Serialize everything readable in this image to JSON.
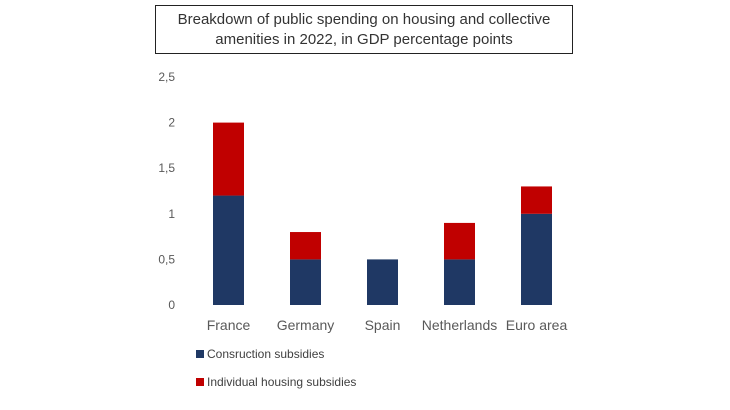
{
  "colors": {
    "construction": "#1f3864",
    "individual": "#c00000"
  },
  "chart_data": {
    "type": "bar",
    "stacked": true,
    "title": "Breakdown of public spending on housing and collective amenities in 2022, in GDP percentage points",
    "xlabel": "",
    "ylabel": "",
    "ylim": [
      0,
      2.5
    ],
    "yticks": [
      "0",
      "0,5",
      "1",
      "1,5",
      "2",
      "2,5"
    ],
    "ytick_values": [
      0,
      0.5,
      1,
      1.5,
      2,
      2.5
    ],
    "categories": [
      "France",
      "Germany",
      "Spain",
      "Netherlands",
      "Euro area"
    ],
    "series": [
      {
        "name": "Consruction subsidies",
        "values": [
          1.2,
          0.5,
          0.5,
          0.5,
          1.0
        ]
      },
      {
        "name": "Individual housing subsidies",
        "values": [
          0.8,
          0.3,
          0.0,
          0.4,
          0.3
        ]
      }
    ],
    "legend_position": "bottom-left",
    "grid": false
  }
}
